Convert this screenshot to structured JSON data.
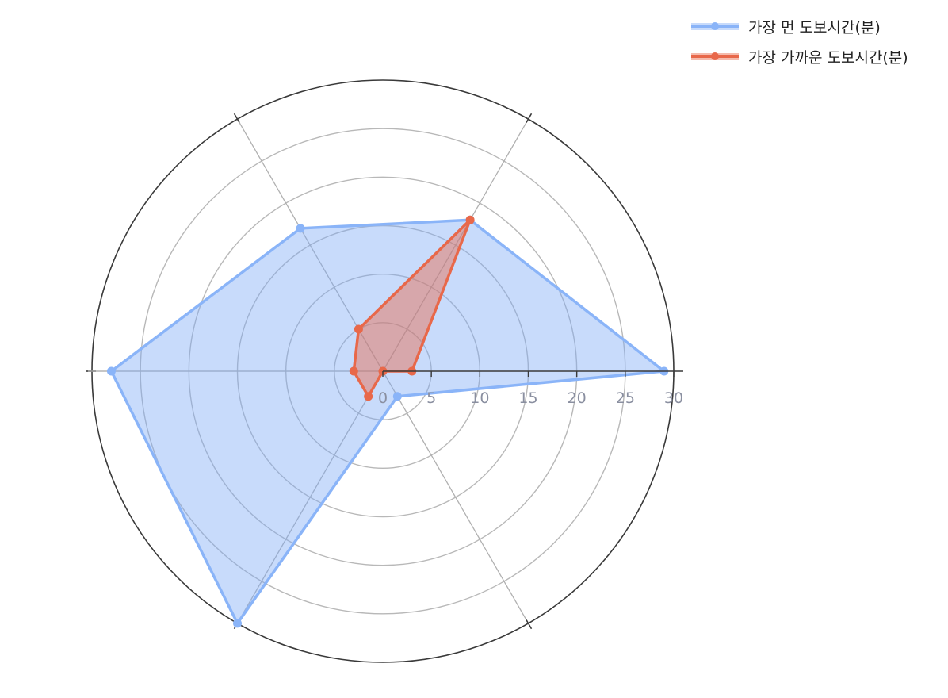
{
  "chart_data": {
    "type": "radar",
    "categories": [
      "",
      "",
      "",
      "",
      "",
      ""
    ],
    "radial_ticks": [
      0,
      5,
      10,
      15,
      20,
      25,
      30
    ],
    "rlim": [
      0,
      30
    ],
    "grid": true,
    "legend_position": "top-right",
    "series": [
      {
        "name": "가장 먼 도보시간(분)",
        "color": "#8ab4f8",
        "fill": "rgba(125,170,245,0.42)",
        "values": [
          29,
          18,
          17,
          28,
          30,
          3
        ]
      },
      {
        "name": "가장 가까운 도보시간(분)",
        "color": "#e8684a",
        "fill": "rgba(232,104,74,0.45)",
        "values": [
          3,
          18,
          5,
          3,
          3,
          0
        ]
      }
    ]
  }
}
